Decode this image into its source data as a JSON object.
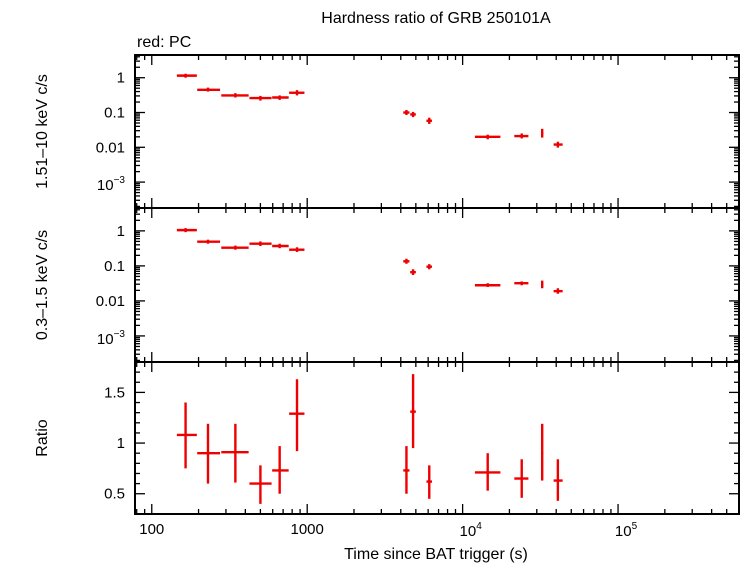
{
  "chart_data": {
    "type": "scatter",
    "title": "Hardness ratio of GRB 250101A",
    "legend_text": "red: PC",
    "xlabel": "Time since BAT trigger (s)",
    "x_scale": "log",
    "xlim": [
      78,
      600000
    ],
    "x_ticks": [
      {
        "value": 100,
        "label": "100"
      },
      {
        "value": 1000,
        "label": "1000"
      },
      {
        "value": 10000,
        "base": "10",
        "exp": "4"
      },
      {
        "value": 100000,
        "base": "10",
        "exp": "5"
      }
    ],
    "color": "#ee0000",
    "panels": [
      {
        "key": "hard",
        "ylabel": "1.51–10 keV c/s",
        "y_scale": "log",
        "ylim": [
          0.00018,
          4.5
        ],
        "y_ticks": [
          {
            "value": 1,
            "label": "1"
          },
          {
            "value": 0.1,
            "label": "0.1"
          },
          {
            "value": 0.01,
            "label": "0.01"
          },
          {
            "value": 0.001,
            "base": "10",
            "exp": "−3"
          }
        ],
        "points": [
          {
            "x": 165,
            "xlo": 145,
            "xhi": 195,
            "y": 1.15,
            "ylo": 1.0,
            "yhi": 1.3
          },
          {
            "x": 230,
            "xlo": 196,
            "xhi": 275,
            "y": 0.45,
            "ylo": 0.4,
            "yhi": 0.52
          },
          {
            "x": 345,
            "xlo": 280,
            "xhi": 420,
            "y": 0.31,
            "ylo": 0.27,
            "yhi": 0.36
          },
          {
            "x": 500,
            "xlo": 425,
            "xhi": 590,
            "y": 0.26,
            "ylo": 0.22,
            "yhi": 0.3
          },
          {
            "x": 665,
            "xlo": 595,
            "xhi": 760,
            "y": 0.27,
            "ylo": 0.23,
            "yhi": 0.31
          },
          {
            "x": 860,
            "xlo": 765,
            "xhi": 960,
            "y": 0.37,
            "ylo": 0.31,
            "yhi": 0.44
          },
          {
            "x": 4350,
            "xlo": 4150,
            "xhi": 4550,
            "y": 0.1,
            "ylo": 0.085,
            "yhi": 0.118
          },
          {
            "x": 4800,
            "xlo": 4600,
            "xhi": 5000,
            "y": 0.088,
            "ylo": 0.074,
            "yhi": 0.104
          },
          {
            "x": 6100,
            "xlo": 5850,
            "xhi": 6350,
            "y": 0.058,
            "ylo": 0.047,
            "yhi": 0.071
          },
          {
            "x": 14500,
            "xlo": 12000,
            "xhi": 17500,
            "y": 0.02,
            "ylo": 0.017,
            "yhi": 0.023
          },
          {
            "x": 24000,
            "xlo": 21500,
            "xhi": 26500,
            "y": 0.021,
            "ylo": 0.018,
            "yhi": 0.025
          },
          {
            "x": 32500,
            "xlo": 32000,
            "xhi": 33000,
            "y": 0.026,
            "ylo": 0.019,
            "yhi": 0.034
          },
          {
            "x": 41000,
            "xlo": 38500,
            "xhi": 44000,
            "y": 0.012,
            "ylo": 0.0098,
            "yhi": 0.0145
          }
        ]
      },
      {
        "key": "soft",
        "ylabel": "0.3–1.5 keV c/s",
        "y_scale": "log",
        "ylim": [
          0.00018,
          4.5
        ],
        "y_ticks": [
          {
            "value": 1,
            "label": "1"
          },
          {
            "value": 0.1,
            "label": "0.1"
          },
          {
            "value": 0.01,
            "label": "0.01"
          },
          {
            "value": 0.001,
            "base": "10",
            "exp": "−3"
          }
        ],
        "points": [
          {
            "x": 165,
            "xlo": 145,
            "xhi": 195,
            "y": 1.05,
            "ylo": 0.92,
            "yhi": 1.2
          },
          {
            "x": 230,
            "xlo": 196,
            "xhi": 275,
            "y": 0.49,
            "ylo": 0.43,
            "yhi": 0.56
          },
          {
            "x": 345,
            "xlo": 280,
            "xhi": 420,
            "y": 0.33,
            "ylo": 0.29,
            "yhi": 0.38
          },
          {
            "x": 500,
            "xlo": 425,
            "xhi": 590,
            "y": 0.43,
            "ylo": 0.37,
            "yhi": 0.5
          },
          {
            "x": 665,
            "xlo": 595,
            "xhi": 760,
            "y": 0.37,
            "ylo": 0.32,
            "yhi": 0.43
          },
          {
            "x": 860,
            "xlo": 765,
            "xhi": 960,
            "y": 0.29,
            "ylo": 0.25,
            "yhi": 0.34
          },
          {
            "x": 4350,
            "xlo": 4150,
            "xhi": 4550,
            "y": 0.135,
            "ylo": 0.115,
            "yhi": 0.16
          },
          {
            "x": 4800,
            "xlo": 4600,
            "xhi": 5000,
            "y": 0.066,
            "ylo": 0.055,
            "yhi": 0.08
          },
          {
            "x": 6100,
            "xlo": 5850,
            "xhi": 6350,
            "y": 0.095,
            "ylo": 0.08,
            "yhi": 0.112
          },
          {
            "x": 14500,
            "xlo": 12000,
            "xhi": 17500,
            "y": 0.028,
            "ylo": 0.025,
            "yhi": 0.032
          },
          {
            "x": 24000,
            "xlo": 21500,
            "xhi": 26500,
            "y": 0.032,
            "ylo": 0.028,
            "yhi": 0.036
          },
          {
            "x": 32500,
            "xlo": 32000,
            "xhi": 33000,
            "y": 0.03,
            "ylo": 0.023,
            "yhi": 0.038
          },
          {
            "x": 41000,
            "xlo": 38500,
            "xhi": 44000,
            "y": 0.019,
            "ylo": 0.016,
            "yhi": 0.023
          }
        ]
      },
      {
        "key": "ratio",
        "ylabel": "Ratio",
        "y_scale": "linear",
        "ylim": [
          0.3,
          1.8
        ],
        "y_ticks": [
          {
            "value": 1.5,
            "label": "1.5"
          },
          {
            "value": 1,
            "label": "1"
          },
          {
            "value": 0.5,
            "label": "0.5"
          }
        ],
        "points": [
          {
            "x": 165,
            "xlo": 145,
            "xhi": 195,
            "y": 1.08,
            "ylo": 0.75,
            "yhi": 1.4
          },
          {
            "x": 230,
            "xlo": 196,
            "xhi": 275,
            "y": 0.9,
            "ylo": 0.6,
            "yhi": 1.19
          },
          {
            "x": 345,
            "xlo": 280,
            "xhi": 420,
            "y": 0.91,
            "ylo": 0.61,
            "yhi": 1.19
          },
          {
            "x": 500,
            "xlo": 425,
            "xhi": 590,
            "y": 0.6,
            "ylo": 0.4,
            "yhi": 0.78
          },
          {
            "x": 665,
            "xlo": 595,
            "xhi": 760,
            "y": 0.73,
            "ylo": 0.5,
            "yhi": 0.97
          },
          {
            "x": 860,
            "xlo": 765,
            "xhi": 960,
            "y": 1.29,
            "ylo": 0.92,
            "yhi": 1.63
          },
          {
            "x": 4350,
            "xlo": 4150,
            "xhi": 4550,
            "y": 0.73,
            "ylo": 0.5,
            "yhi": 0.97
          },
          {
            "x": 4800,
            "xlo": 4600,
            "xhi": 5000,
            "y": 1.31,
            "ylo": 0.95,
            "yhi": 1.68
          },
          {
            "x": 6100,
            "xlo": 5850,
            "xhi": 6350,
            "y": 0.62,
            "ylo": 0.45,
            "yhi": 0.78
          },
          {
            "x": 14500,
            "xlo": 12000,
            "xhi": 17500,
            "y": 0.71,
            "ylo": 0.53,
            "yhi": 0.9
          },
          {
            "x": 24000,
            "xlo": 21500,
            "xhi": 26500,
            "y": 0.65,
            "ylo": 0.46,
            "yhi": 0.84
          },
          {
            "x": 32500,
            "xlo": 32000,
            "xhi": 33000,
            "y": 0.9,
            "ylo": 0.63,
            "yhi": 1.19
          },
          {
            "x": 41000,
            "xlo": 38500,
            "xhi": 44000,
            "y": 0.63,
            "ylo": 0.43,
            "yhi": 0.84
          }
        ]
      }
    ]
  }
}
